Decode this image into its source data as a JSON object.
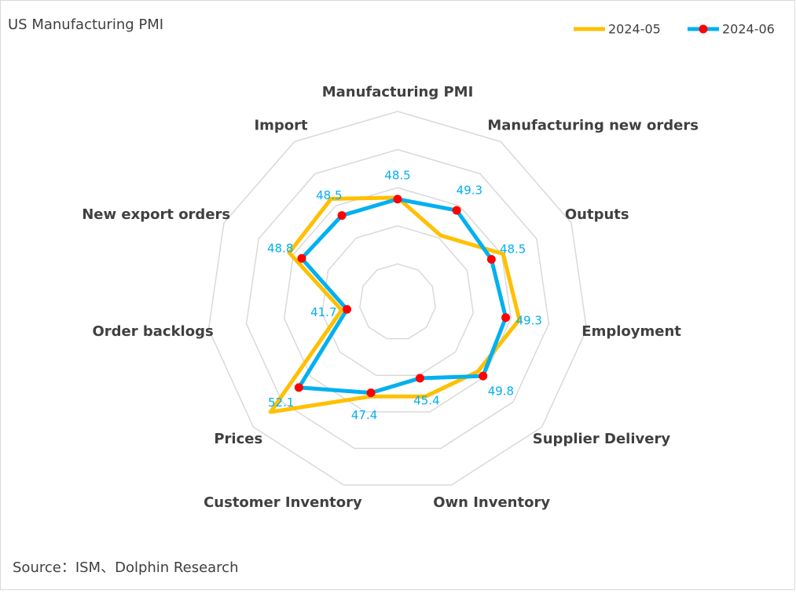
{
  "chart_data": {
    "type": "radar",
    "title": "US Manufacturing PMI",
    "categories": [
      "Manufacturing PMI",
      "Manufacturing new orders",
      "Outputs",
      "Employment",
      "Supplier Delivery",
      "Own Inventory",
      "Customer Inventory",
      "Prices",
      "Order backlogs",
      "New export orders",
      "Import"
    ],
    "series": [
      {
        "name": "2024-05",
        "color": "#ffc000",
        "values": [
          48.7,
          45.4,
          50.2,
          51.1,
          48.9,
          47.9,
          47.9,
          57.0,
          42.4,
          50.6,
          51.1
        ]
      },
      {
        "name": "2024-06",
        "color": "#00b0f0",
        "marker_color": "#ff0000",
        "values": [
          48.5,
          49.3,
          48.5,
          49.3,
          49.8,
          45.4,
          47.4,
          52.1,
          41.7,
          48.8,
          48.5
        ]
      }
    ],
    "ylim": [
      35,
      60
    ],
    "yticks": [
      40,
      45,
      50,
      55,
      60
    ],
    "grid": true,
    "legend": "top-right",
    "source": "Source：ISM、Dolphin Research"
  }
}
